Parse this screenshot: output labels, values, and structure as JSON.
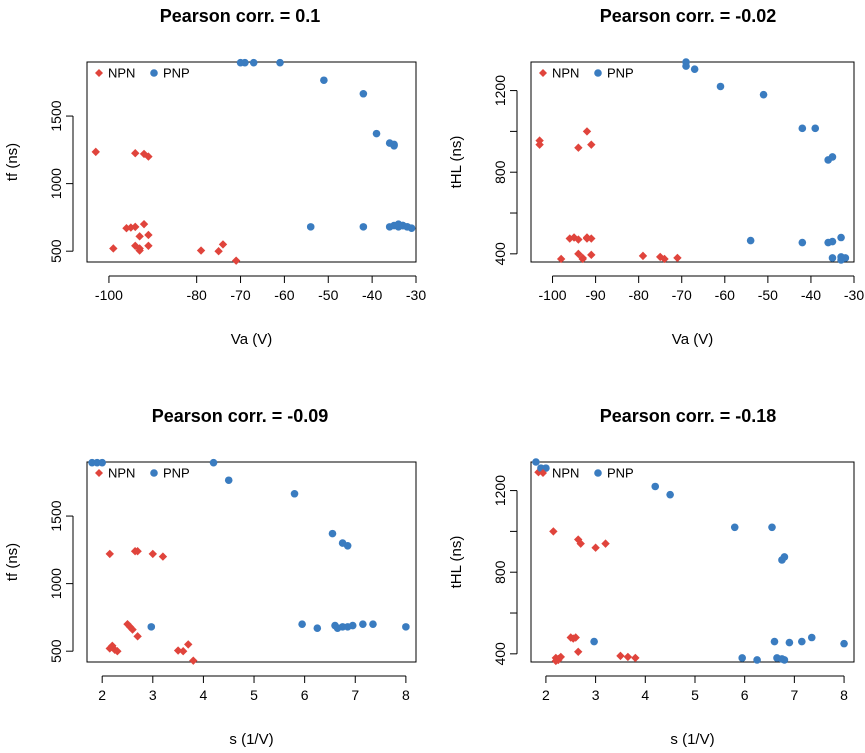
{
  "colors": {
    "NPN": "#e0443c",
    "PNP": "#3a7cc0",
    "axis": "#000000"
  },
  "chart_data": [
    {
      "type": "scatter",
      "title": "Pearson corr. =  0.1",
      "xlabel": "Va (V)",
      "ylabel": "tf (ns)",
      "xlim": [
        -105,
        -30
      ],
      "ylim": [
        420,
        1900
      ],
      "xticks": [
        -100,
        -80,
        -70,
        -60,
        -50,
        -40,
        -30
      ],
      "xtick_labels": [
        "-100",
        "-80",
        "-70",
        "-60",
        "-50",
        "-40",
        "-30"
      ],
      "yticks": [
        500,
        1000,
        1500
      ],
      "ytick_labels": [
        "500",
        "1000",
        "1500"
      ],
      "legend": {
        "position": "top-left",
        "entries": [
          "NPN",
          "PNP"
        ]
      },
      "series": [
        {
          "name": "NPN",
          "marker": "diamond",
          "x": [
            -103,
            -99,
            -96,
            -95,
            -94,
            -94,
            -93,
            -93,
            -92,
            -91,
            -91,
            -93,
            -92,
            -91,
            -94,
            -79,
            -75,
            -74,
            -71
          ],
          "y": [
            1235,
            520,
            670,
            675,
            680,
            540,
            520,
            505,
            700,
            540,
            620,
            610,
            1220,
            1200,
            1225,
            505,
            500,
            550,
            430
          ]
        },
        {
          "name": "PNP",
          "marker": "circle",
          "x": [
            -70,
            -69,
            -67,
            -61,
            -51,
            -42,
            -39,
            -36,
            -35,
            -35,
            -34,
            -33,
            -32,
            -54,
            -42,
            -36,
            -35,
            -34,
            -33,
            -32,
            -31
          ],
          "y": [
            1895,
            1895,
            1895,
            1895,
            1765,
            1665,
            1370,
            1300,
            1290,
            1280,
            680,
            690,
            680,
            680,
            680,
            680,
            690,
            700,
            690,
            680,
            670
          ]
        }
      ]
    },
    {
      "type": "scatter",
      "title": "Pearson corr. =  -0.02",
      "xlabel": "Va (V)",
      "ylabel": "tHL (ns)",
      "xlim": [
        -105,
        -30
      ],
      "ylim": [
        360,
        1340
      ],
      "xticks": [
        -100,
        -90,
        -80,
        -70,
        -60,
        -50,
        -40,
        -30
      ],
      "xtick_labels": [
        "-100",
        "-90",
        "-80",
        "-70",
        "-60",
        "-50",
        "-40",
        "-30"
      ],
      "yticks": [
        400,
        600,
        800,
        1000,
        1200
      ],
      "ytick_labels": [
        "400",
        "",
        "800",
        "",
        "1200"
      ],
      "legend": {
        "position": "top-left",
        "entries": [
          "NPN",
          "PNP"
        ]
      },
      "series": [
        {
          "name": "NPN",
          "marker": "diamond",
          "x": [
            -103,
            -103,
            -98,
            -96,
            -95,
            -94,
            -94,
            -93,
            -93,
            -92,
            -92,
            -91,
            -91,
            -94,
            -92,
            -91,
            -79,
            -75,
            -74,
            -71
          ],
          "y": [
            955,
            935,
            375,
            475,
            480,
            470,
            400,
            375,
            380,
            475,
            1000,
            935,
            395,
            920,
            480,
            475,
            390,
            385,
            375,
            380
          ]
        },
        {
          "name": "PNP",
          "marker": "circle",
          "x": [
            -69,
            -69,
            -67,
            -61,
            -51,
            -42,
            -39,
            -36,
            -35,
            -54,
            -42,
            -36,
            -35,
            -35,
            -33,
            -33,
            -33,
            -32
          ],
          "y": [
            1340,
            1320,
            1305,
            1220,
            1180,
            1015,
            1015,
            860,
            875,
            465,
            455,
            455,
            460,
            380,
            385,
            370,
            480,
            380
          ]
        }
      ]
    },
    {
      "type": "scatter",
      "title": "Pearson corr. =  -0.09",
      "xlabel": "s (1/V)",
      "ylabel": "tf (ns)",
      "xlim": [
        1.7,
        8.2
      ],
      "ylim": [
        420,
        1900
      ],
      "xticks": [
        2,
        3,
        4,
        5,
        6,
        7,
        8
      ],
      "xtick_labels": [
        "2",
        "3",
        "4",
        "5",
        "6",
        "7",
        "8"
      ],
      "yticks": [
        500,
        1000,
        1500
      ],
      "ytick_labels": [
        "500",
        "1000",
        "1500"
      ],
      "legend": {
        "position": "top-left",
        "entries": [
          "NPN",
          "PNP"
        ]
      },
      "series": [
        {
          "name": "NPN",
          "marker": "diamond",
          "x": [
            2.15,
            2.2,
            2.25,
            2.3,
            2.5,
            2.55,
            2.6,
            2.7,
            2.65,
            2.7,
            3.0,
            3.2,
            2.15,
            3.5,
            3.6,
            3.7,
            3.8
          ],
          "y": [
            520,
            540,
            510,
            500,
            700,
            680,
            660,
            610,
            1240,
            1240,
            1220,
            1200,
            1220,
            505,
            500,
            550,
            430
          ]
        },
        {
          "name": "PNP",
          "marker": "circle",
          "x": [
            1.8,
            1.9,
            2.0,
            4.2,
            4.5,
            5.8,
            6.55,
            6.75,
            6.85,
            2.97,
            5.95,
            6.25,
            6.6,
            6.65,
            6.75,
            6.85,
            6.95,
            7.15,
            7.35,
            8.0
          ],
          "y": [
            1895,
            1895,
            1895,
            1895,
            1765,
            1665,
            1370,
            1300,
            1280,
            680,
            700,
            670,
            690,
            670,
            680,
            680,
            690,
            700,
            700,
            680
          ]
        }
      ]
    },
    {
      "type": "scatter",
      "title": "Pearson corr. =  -0.18",
      "xlabel": "s (1/V)",
      "ylabel": "tHL (ns)",
      "xlim": [
        1.7,
        8.2
      ],
      "ylim": [
        360,
        1340
      ],
      "xticks": [
        2,
        3,
        4,
        5,
        6,
        7,
        8
      ],
      "xtick_labels": [
        "2",
        "3",
        "4",
        "5",
        "6",
        "7",
        "8"
      ],
      "yticks": [
        400,
        600,
        800,
        1000,
        1200
      ],
      "ytick_labels": [
        "400",
        "",
        "800",
        "",
        "1200"
      ],
      "legend": {
        "position": "top-left",
        "entries": [
          "NPN",
          "PNP"
        ]
      },
      "series": [
        {
          "name": "NPN",
          "marker": "diamond",
          "x": [
            1.85,
            2.15,
            2.2,
            2.25,
            2.3,
            2.5,
            2.55,
            2.6,
            2.65,
            2.65,
            2.7,
            3.0,
            3.2,
            3.5,
            3.65,
            3.8,
            2.25,
            2.2
          ],
          "y": [
            1290,
            1000,
            380,
            375,
            385,
            480,
            475,
            480,
            960,
            410,
            940,
            920,
            940,
            390,
            385,
            380,
            370,
            365
          ]
        },
        {
          "name": "PNP",
          "marker": "circle",
          "x": [
            1.8,
            1.9,
            2.0,
            4.2,
            4.5,
            5.8,
            6.55,
            6.75,
            6.8,
            2.97,
            5.95,
            6.25,
            6.6,
            6.65,
            6.75,
            6.8,
            6.9,
            7.15,
            7.35,
            8.0
          ],
          "y": [
            1340,
            1310,
            1310,
            1220,
            1180,
            1020,
            1020,
            860,
            875,
            460,
            380,
            370,
            460,
            380,
            375,
            370,
            455,
            460,
            480,
            450
          ]
        }
      ]
    }
  ]
}
